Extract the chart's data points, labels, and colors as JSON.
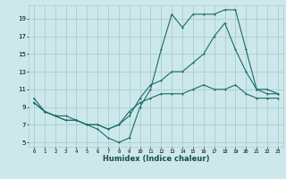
{
  "title": "",
  "xlabel": "Humidex (Indice chaleur)",
  "ylabel": "",
  "bg_color": "#cce8ea",
  "grid_color": "#aacdd0",
  "line_color": "#1a6b6b",
  "xlim": [
    -0.5,
    23.5
  ],
  "ylim": [
    4.5,
    20.5
  ],
  "xticks": [
    0,
    1,
    2,
    3,
    4,
    5,
    6,
    7,
    8,
    9,
    10,
    11,
    12,
    13,
    14,
    15,
    16,
    17,
    18,
    19,
    20,
    21,
    22,
    23
  ],
  "yticks": [
    5,
    7,
    9,
    11,
    13,
    15,
    17,
    19
  ],
  "line1_x": [
    0,
    1,
    2,
    3,
    4,
    5,
    6,
    7,
    8,
    9,
    10,
    11,
    12,
    13,
    14,
    15,
    16,
    17,
    18,
    19,
    20,
    21,
    22,
    23
  ],
  "line1_y": [
    10,
    8.5,
    8,
    8,
    7.5,
    7,
    6.5,
    5.5,
    5,
    5.5,
    9,
    11,
    15.5,
    19.5,
    18,
    19.5,
    19.5,
    19.5,
    20,
    20,
    15.5,
    11,
    11,
    10.5
  ],
  "line2_x": [
    0,
    1,
    2,
    3,
    4,
    5,
    6,
    7,
    8,
    9,
    10,
    11,
    12,
    13,
    14,
    15,
    16,
    17,
    18,
    19,
    20,
    21,
    22,
    23
  ],
  "line2_y": [
    9.5,
    8.5,
    8,
    7.5,
    7.5,
    7,
    7,
    6.5,
    7,
    8,
    10,
    11.5,
    12,
    13,
    13,
    14,
    15,
    17,
    18.5,
    15.5,
    13,
    11,
    10.5,
    10.5
  ],
  "line3_x": [
    0,
    1,
    2,
    3,
    4,
    5,
    6,
    7,
    8,
    9,
    10,
    11,
    12,
    13,
    14,
    15,
    16,
    17,
    18,
    19,
    20,
    21,
    22,
    23
  ],
  "line3_y": [
    9.5,
    8.5,
    8,
    7.5,
    7.5,
    7,
    7,
    6.5,
    7,
    8.5,
    9.5,
    10,
    10.5,
    10.5,
    10.5,
    11,
    11.5,
    11,
    11,
    11.5,
    10.5,
    10,
    10,
    10
  ]
}
